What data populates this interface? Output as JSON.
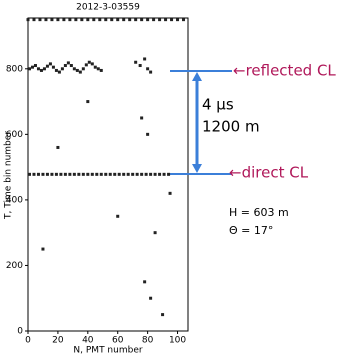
{
  "chart_data": {
    "type": "scatter",
    "title": "2012-3-03559",
    "x_label": "N, PMT number",
    "y_label": "T, Time bin number",
    "xlim": [
      0,
      107
    ],
    "ylim": [
      0,
      955
    ],
    "xticks": [
      0,
      20,
      40,
      60,
      80,
      100
    ],
    "yticks": [
      0,
      200,
      400,
      600,
      800
    ],
    "color": "#222222",
    "x": [
      0,
      4,
      8,
      12,
      16,
      20,
      24,
      28,
      32,
      36,
      40,
      44,
      48,
      52,
      56,
      60,
      64,
      68,
      72,
      76,
      80,
      84,
      88,
      92,
      96,
      100,
      104,
      1,
      4,
      7,
      10,
      13,
      16,
      19,
      22,
      25,
      28,
      31,
      34,
      37,
      40,
      43,
      46,
      49,
      52,
      55,
      58,
      61,
      64,
      67,
      70,
      73,
      76,
      79,
      82,
      85,
      88,
      91,
      94,
      1,
      3,
      5,
      7,
      9,
      11,
      13,
      15,
      17,
      19,
      21,
      23,
      25,
      27,
      29,
      31,
      33,
      35,
      37,
      39,
      41,
      43,
      45,
      47,
      49,
      72,
      75,
      78,
      80,
      82,
      76,
      80,
      85,
      78,
      82,
      90,
      40,
      20,
      60,
      10,
      95
    ],
    "y": [
      950,
      950,
      950,
      950,
      950,
      950,
      950,
      950,
      950,
      950,
      950,
      950,
      950,
      950,
      950,
      950,
      950,
      950,
      950,
      950,
      950,
      950,
      950,
      950,
      950,
      950,
      950,
      478,
      478,
      478,
      478,
      478,
      478,
      478,
      478,
      478,
      478,
      478,
      478,
      478,
      478,
      478,
      478,
      478,
      478,
      478,
      478,
      478,
      478,
      478,
      478,
      478,
      478,
      478,
      478,
      478,
      478,
      478,
      478,
      800,
      805,
      810,
      800,
      795,
      800,
      808,
      815,
      805,
      795,
      790,
      800,
      810,
      818,
      810,
      800,
      795,
      790,
      800,
      812,
      820,
      815,
      805,
      800,
      795,
      820,
      810,
      830,
      800,
      790,
      650,
      600,
      300,
      150,
      100,
      50,
      700,
      560,
      350,
      250,
      420
    ],
    "annotations": {
      "reflected": "←reflected CL",
      "direct": "←direct CL",
      "time": "4 µs",
      "distance": "1200 m",
      "height": "H = 603 m",
      "angle": "Θ = 17°"
    }
  }
}
